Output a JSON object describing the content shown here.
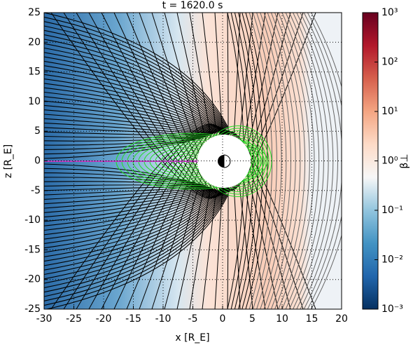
{
  "chart_data": {
    "type": "heatmap",
    "title": "t = 1620.0 s",
    "xlabel": "x [R_E]",
    "ylabel": "z [R_E]",
    "xlim": [
      -30,
      20
    ],
    "ylim": [
      -25,
      25
    ],
    "xticks": [
      -30,
      -25,
      -20,
      -15,
      -10,
      -5,
      0,
      5,
      10,
      15,
      20
    ],
    "yticks": [
      -25,
      -20,
      -15,
      -10,
      -5,
      0,
      5,
      10,
      15,
      20,
      25
    ],
    "grid": true,
    "colorbar": {
      "label": "β⊥",
      "log": true,
      "lim": [
        0.001,
        1000
      ],
      "colors": [
        "#053061",
        "#2166ac",
        "#4393c3",
        "#92c5de",
        "#f7f7f7",
        "#fddbc7",
        "#f4a582",
        "#d6604d",
        "#b2182b",
        "#67001f"
      ],
      "ticks": [
        {
          "value": 0.001,
          "label": "10⁻³"
        },
        {
          "value": 0.01,
          "label": "10⁻²"
        },
        {
          "value": 0.1,
          "label": "10⁻¹"
        },
        {
          "value": 1,
          "label": "10⁰"
        },
        {
          "value": 10,
          "label": "10¹"
        },
        {
          "value": 100,
          "label": "10²"
        },
        {
          "value": 1000,
          "label": "10³"
        }
      ]
    }
  }
}
